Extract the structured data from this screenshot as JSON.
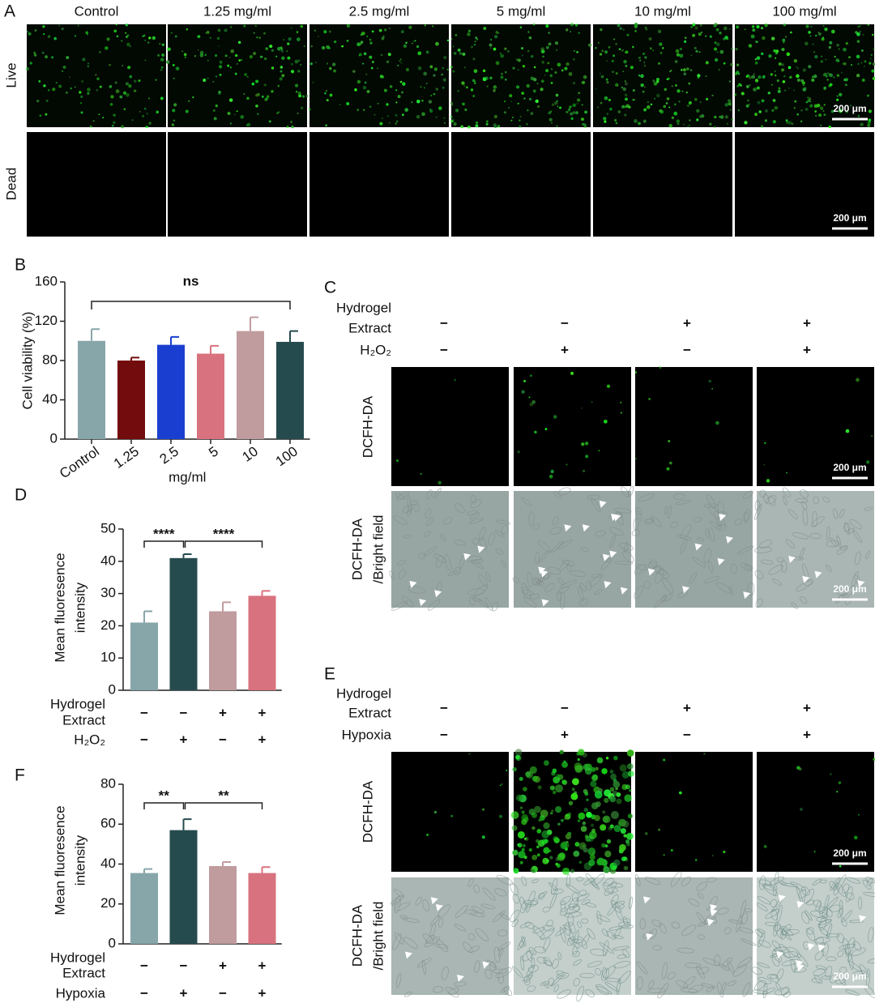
{
  "panel_a": {
    "label": "A",
    "columns": [
      "Control",
      "1.25 mg/ml",
      "2.5 mg/ml",
      "5 mg/ml",
      "10 mg/ml",
      "100 mg/ml"
    ],
    "rows": [
      "Live",
      "Dead"
    ],
    "scale_bar": "200 μm"
  },
  "chart_data": [
    {
      "type": "bar",
      "label": "B",
      "ylabel": [
        "Cell viability (%)"
      ],
      "xlabel": "mg/ml",
      "categories": [
        "Control",
        "1.25",
        "2.5",
        "5",
        "10",
        "100"
      ],
      "values": [
        100,
        80,
        96,
        87,
        110,
        99
      ],
      "errors": [
        12,
        3,
        8,
        8,
        14,
        11
      ],
      "colors": [
        "#87a6aa",
        "#730c0c",
        "#1a3fd0",
        "#d9727f",
        "#c09c9e",
        "#264b4f"
      ],
      "ylim": [
        0,
        160
      ],
      "yticks": [
        0,
        40,
        80,
        120,
        160
      ],
      "annotations": [
        "ns"
      ]
    },
    {
      "type": "bar",
      "label": "D",
      "ylabel": [
        "Mean fluoresence",
        "intensity"
      ],
      "values": [
        21,
        41,
        24.5,
        29.3
      ],
      "errors": [
        3.5,
        1.2,
        2.8,
        1.5
      ],
      "colors": [
        "#87a6aa",
        "#264b4f",
        "#c09c9e",
        "#d9727f"
      ],
      "ylim": [
        0,
        50
      ],
      "yticks": [
        0,
        10,
        20,
        30,
        40,
        50
      ],
      "annotations": [
        "****",
        "****"
      ],
      "conditions": [
        {
          "name": [
            "Hydrogel",
            "Extract"
          ],
          "signs": [
            "−",
            "−",
            "+",
            "+"
          ]
        },
        {
          "name": [
            "H₂O₂"
          ],
          "signs": [
            "−",
            "+",
            "−",
            "+"
          ]
        }
      ]
    },
    {
      "type": "bar",
      "label": "F",
      "ylabel": [
        "Mean fluoresence",
        "intensity"
      ],
      "values": [
        35.5,
        57,
        39,
        35.5
      ],
      "errors": [
        2,
        5.5,
        2,
        3
      ],
      "colors": [
        "#87a6aa",
        "#264b4f",
        "#c09c9e",
        "#d9727f"
      ],
      "ylim": [
        0,
        80
      ],
      "yticks": [
        0,
        20,
        40,
        60,
        80
      ],
      "annotations": [
        "**",
        "**"
      ],
      "conditions": [
        {
          "name": [
            "Hydrogel",
            "Extract"
          ],
          "signs": [
            "−",
            "−",
            "+",
            "+"
          ]
        },
        {
          "name": [
            "Hypoxia"
          ],
          "signs": [
            "−",
            "+",
            "−",
            "+"
          ]
        }
      ]
    }
  ],
  "panel_c": {
    "label": "C",
    "conditions": [
      {
        "name": [
          "Hydrogel",
          "Extract"
        ],
        "signs": [
          "−",
          "−",
          "+",
          "+"
        ]
      },
      {
        "name": [
          "H₂O₂"
        ],
        "signs": [
          "−",
          "+",
          "−",
          "+"
        ]
      }
    ],
    "rows": [
      [
        "DCFH-DA"
      ],
      [
        "DCFH-DA",
        "/Bright field"
      ]
    ],
    "scale_bar": "200 μm"
  },
  "panel_e": {
    "label": "E",
    "conditions": [
      {
        "name": [
          "Hydrogel",
          "Extract"
        ],
        "signs": [
          "−",
          "−",
          "+",
          "+"
        ]
      },
      {
        "name": [
          "Hypoxia"
        ],
        "signs": [
          "−",
          "+",
          "−",
          "+"
        ]
      }
    ],
    "rows": [
      [
        "DCFH-DA"
      ],
      [
        "DCFH-DA",
        "/Bright field"
      ]
    ],
    "scale_bar": "200 μm"
  }
}
